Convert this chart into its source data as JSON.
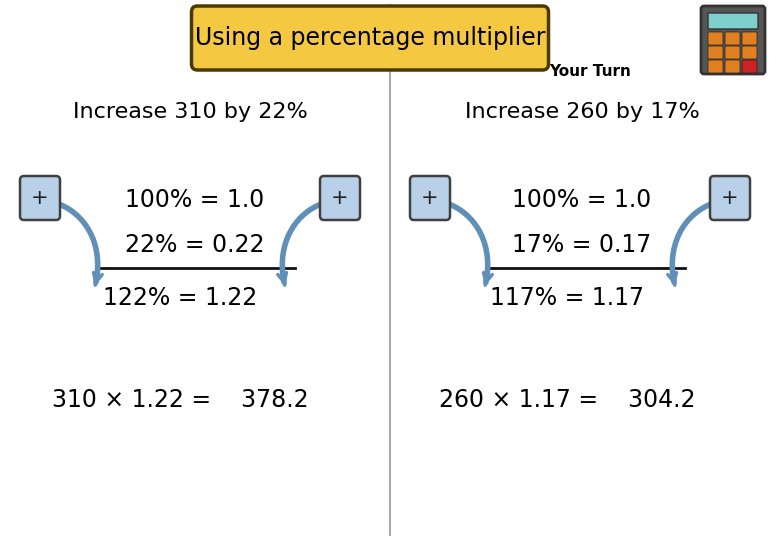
{
  "title": "Using a percentage multiplier",
  "your_turn": "Your Turn",
  "left_heading": "Increase 310 by 22%",
  "right_heading": "Increase 260 by 17%",
  "left_line1": "100% = 1.0",
  "left_line2": "22% = 0.22",
  "left_line3": "122% = 1.22",
  "left_final": "310 × 1.22 =    378.2",
  "right_line1": "100% = 1.0",
  "right_line2": "17% = 0.17",
  "right_line3": "117% = 1.17",
  "right_final": "260 × 1.17 =    304.2",
  "bg_color": "#ffffff",
  "title_bg": "#f5c842",
  "title_border": "#4a3a00",
  "divider_color": "#aaaaaa",
  "plus_box_color": "#b8d0e8",
  "plus_box_border": "#404040",
  "arrow_color": "#6090b8",
  "text_color": "#000000",
  "calc_body": "#555555",
  "calc_screen": "#7fcfcf",
  "calc_btn": "#e08020",
  "calc_btn_red": "#cc2222"
}
